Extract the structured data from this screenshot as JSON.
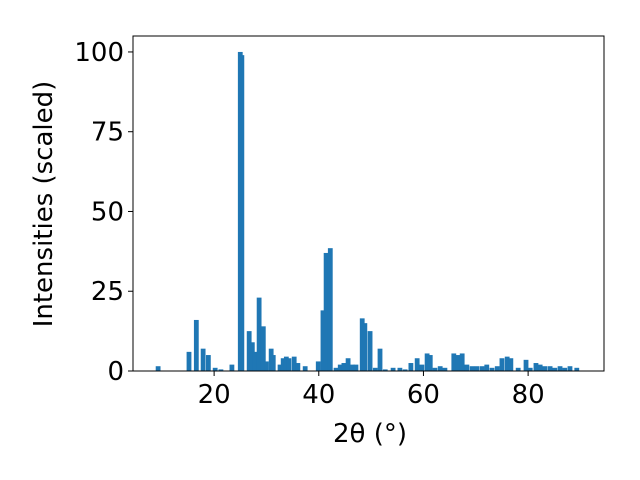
{
  "chart_data": {
    "type": "bar",
    "xlabel": "2θ (°)",
    "ylabel": "Intensities (scaled)",
    "color": "#1f77b4",
    "x": [
      9.3,
      15.2,
      16.6,
      17.9,
      18.9,
      20.2,
      21.3,
      23.4,
      25.0,
      25.3,
      26.7,
      27.3,
      27.8,
      28.6,
      29.4,
      30.0,
      30.9,
      31.3,
      32.6,
      33.2,
      33.8,
      34.3,
      35.3,
      36.0,
      37.4,
      39.9,
      40.8,
      41.4,
      42.2,
      43.3,
      44.1,
      44.8,
      45.6,
      46.4,
      47.1,
      48.3,
      48.8,
      49.8,
      50.8,
      51.7,
      52.7,
      54.2,
      55.5,
      56.5,
      57.6,
      58.8,
      59.7,
      60.7,
      61.3,
      62.2,
      63.2,
      64.1,
      65.8,
      66.6,
      67.4,
      68.3,
      69.3,
      70.2,
      71.2,
      72.1,
      73.1,
      74.1,
      75.0,
      76.0,
      76.7,
      78.1,
      79.6,
      80.4,
      81.5,
      82.3,
      83.2,
      84.2,
      85.1,
      86.1,
      87.0,
      88.0,
      89.3
    ],
    "values": [
      1.5,
      6,
      16,
      7,
      5,
      1,
      0.5,
      2,
      100,
      99,
      12.5,
      9,
      6,
      23,
      14,
      3,
      7,
      5,
      2,
      4,
      4.5,
      4,
      4.5,
      2.5,
      1.5,
      3,
      19,
      37,
      38.5,
      1,
      2,
      2.5,
      4,
      2,
      2,
      16.5,
      15,
      12.5,
      1,
      7,
      0.5,
      1,
      1,
      0.5,
      2.5,
      4,
      2,
      5.5,
      5,
      1,
      1.5,
      1,
      5.5,
      5,
      5.5,
      2,
      1.5,
      1.5,
      1.5,
      2,
      1,
      1.5,
      4,
      4.5,
      4,
      1,
      3.5,
      1,
      2.5,
      2,
      1.5,
      1.5,
      1,
      1.5,
      1,
      1.5,
      1
    ],
    "xlim": [
      4.5,
      94.5
    ],
    "xticks": [
      20,
      40,
      60,
      80
    ],
    "ylim": [
      0,
      105
    ],
    "yticks": [
      0,
      25,
      50,
      75,
      100
    ]
  }
}
